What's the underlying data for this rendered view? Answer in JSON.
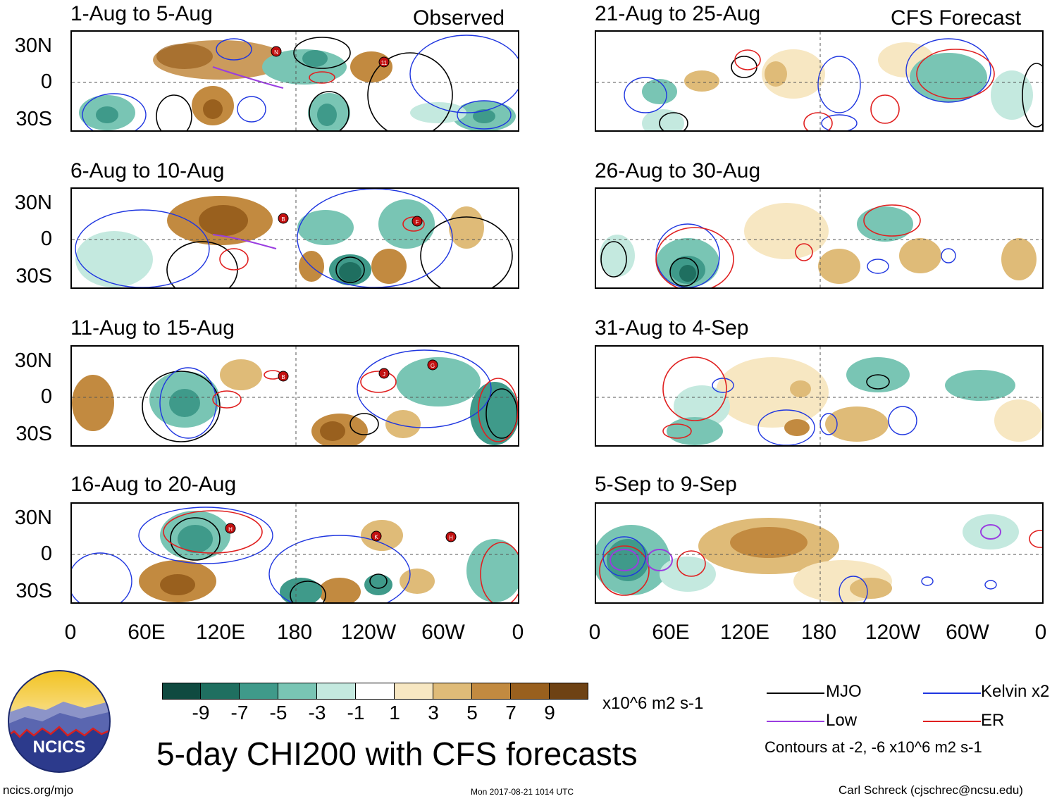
{
  "observed_label": "Observed",
  "forecast_label": "CFS Forecast",
  "panels_left": [
    {
      "title": "1-Aug to 5-Aug"
    },
    {
      "title": "6-Aug to 10-Aug"
    },
    {
      "title": "11-Aug to 15-Aug"
    },
    {
      "title": "16-Aug to 20-Aug"
    }
  ],
  "panels_right": [
    {
      "title": "21-Aug to 25-Aug"
    },
    {
      "title": "26-Aug to 30-Aug"
    },
    {
      "title": "31-Aug to 4-Sep"
    },
    {
      "title": "5-Sep to 9-Sep"
    }
  ],
  "lat_labels": [
    "30N",
    "0",
    "30S"
  ],
  "lon_labels": [
    "0",
    "60E",
    "120E",
    "180",
    "120W",
    "60W",
    "0"
  ],
  "colorbar": {
    "ticks": [
      "-9",
      "-7",
      "-5",
      "-3",
      "-1",
      "1",
      "3",
      "5",
      "7",
      "9"
    ],
    "colors": [
      "#0f4a40",
      "#1f6f60",
      "#3f9a8a",
      "#79c5b4",
      "#c4e9df",
      "#ffffff",
      "#f7e7c2",
      "#dfbb78",
      "#c28a40",
      "#99601e",
      "#6e4214"
    ],
    "units": "x10^6 m2 s-1"
  },
  "legend": {
    "items": [
      {
        "label": "MJO",
        "color": "#000000"
      },
      {
        "label": "Kelvin x2",
        "color": "#1f36e0"
      },
      {
        "label": "Low",
        "color": "#9a3de0"
      },
      {
        "label": "ER",
        "color": "#e02020"
      }
    ],
    "note": "Contours at -2, -6 x10^6 m2 s-1"
  },
  "logo_text": "NCICS",
  "main_title": "5-day CHI200 with CFS forecasts",
  "footer": {
    "left": "ncics.org/mjo",
    "center": "Mon 2017-08-21 1014 UTC",
    "right": "Carl Schreck (cjschrec@ncsu.edu)"
  },
  "storm_markers": [
    {
      "panel": "left-1",
      "letter": "N"
    },
    {
      "panel": "left-1",
      "letter": "11"
    },
    {
      "panel": "left-2",
      "letter": "B"
    },
    {
      "panel": "left-2",
      "letter": "F"
    },
    {
      "panel": "left-3",
      "letter": "B"
    },
    {
      "panel": "left-3",
      "letter": "J"
    },
    {
      "panel": "left-3",
      "letter": "G"
    },
    {
      "panel": "left-4",
      "letter": "H"
    },
    {
      "panel": "left-4",
      "letter": "K"
    },
    {
      "panel": "left-4",
      "letter": "H"
    }
  ]
}
